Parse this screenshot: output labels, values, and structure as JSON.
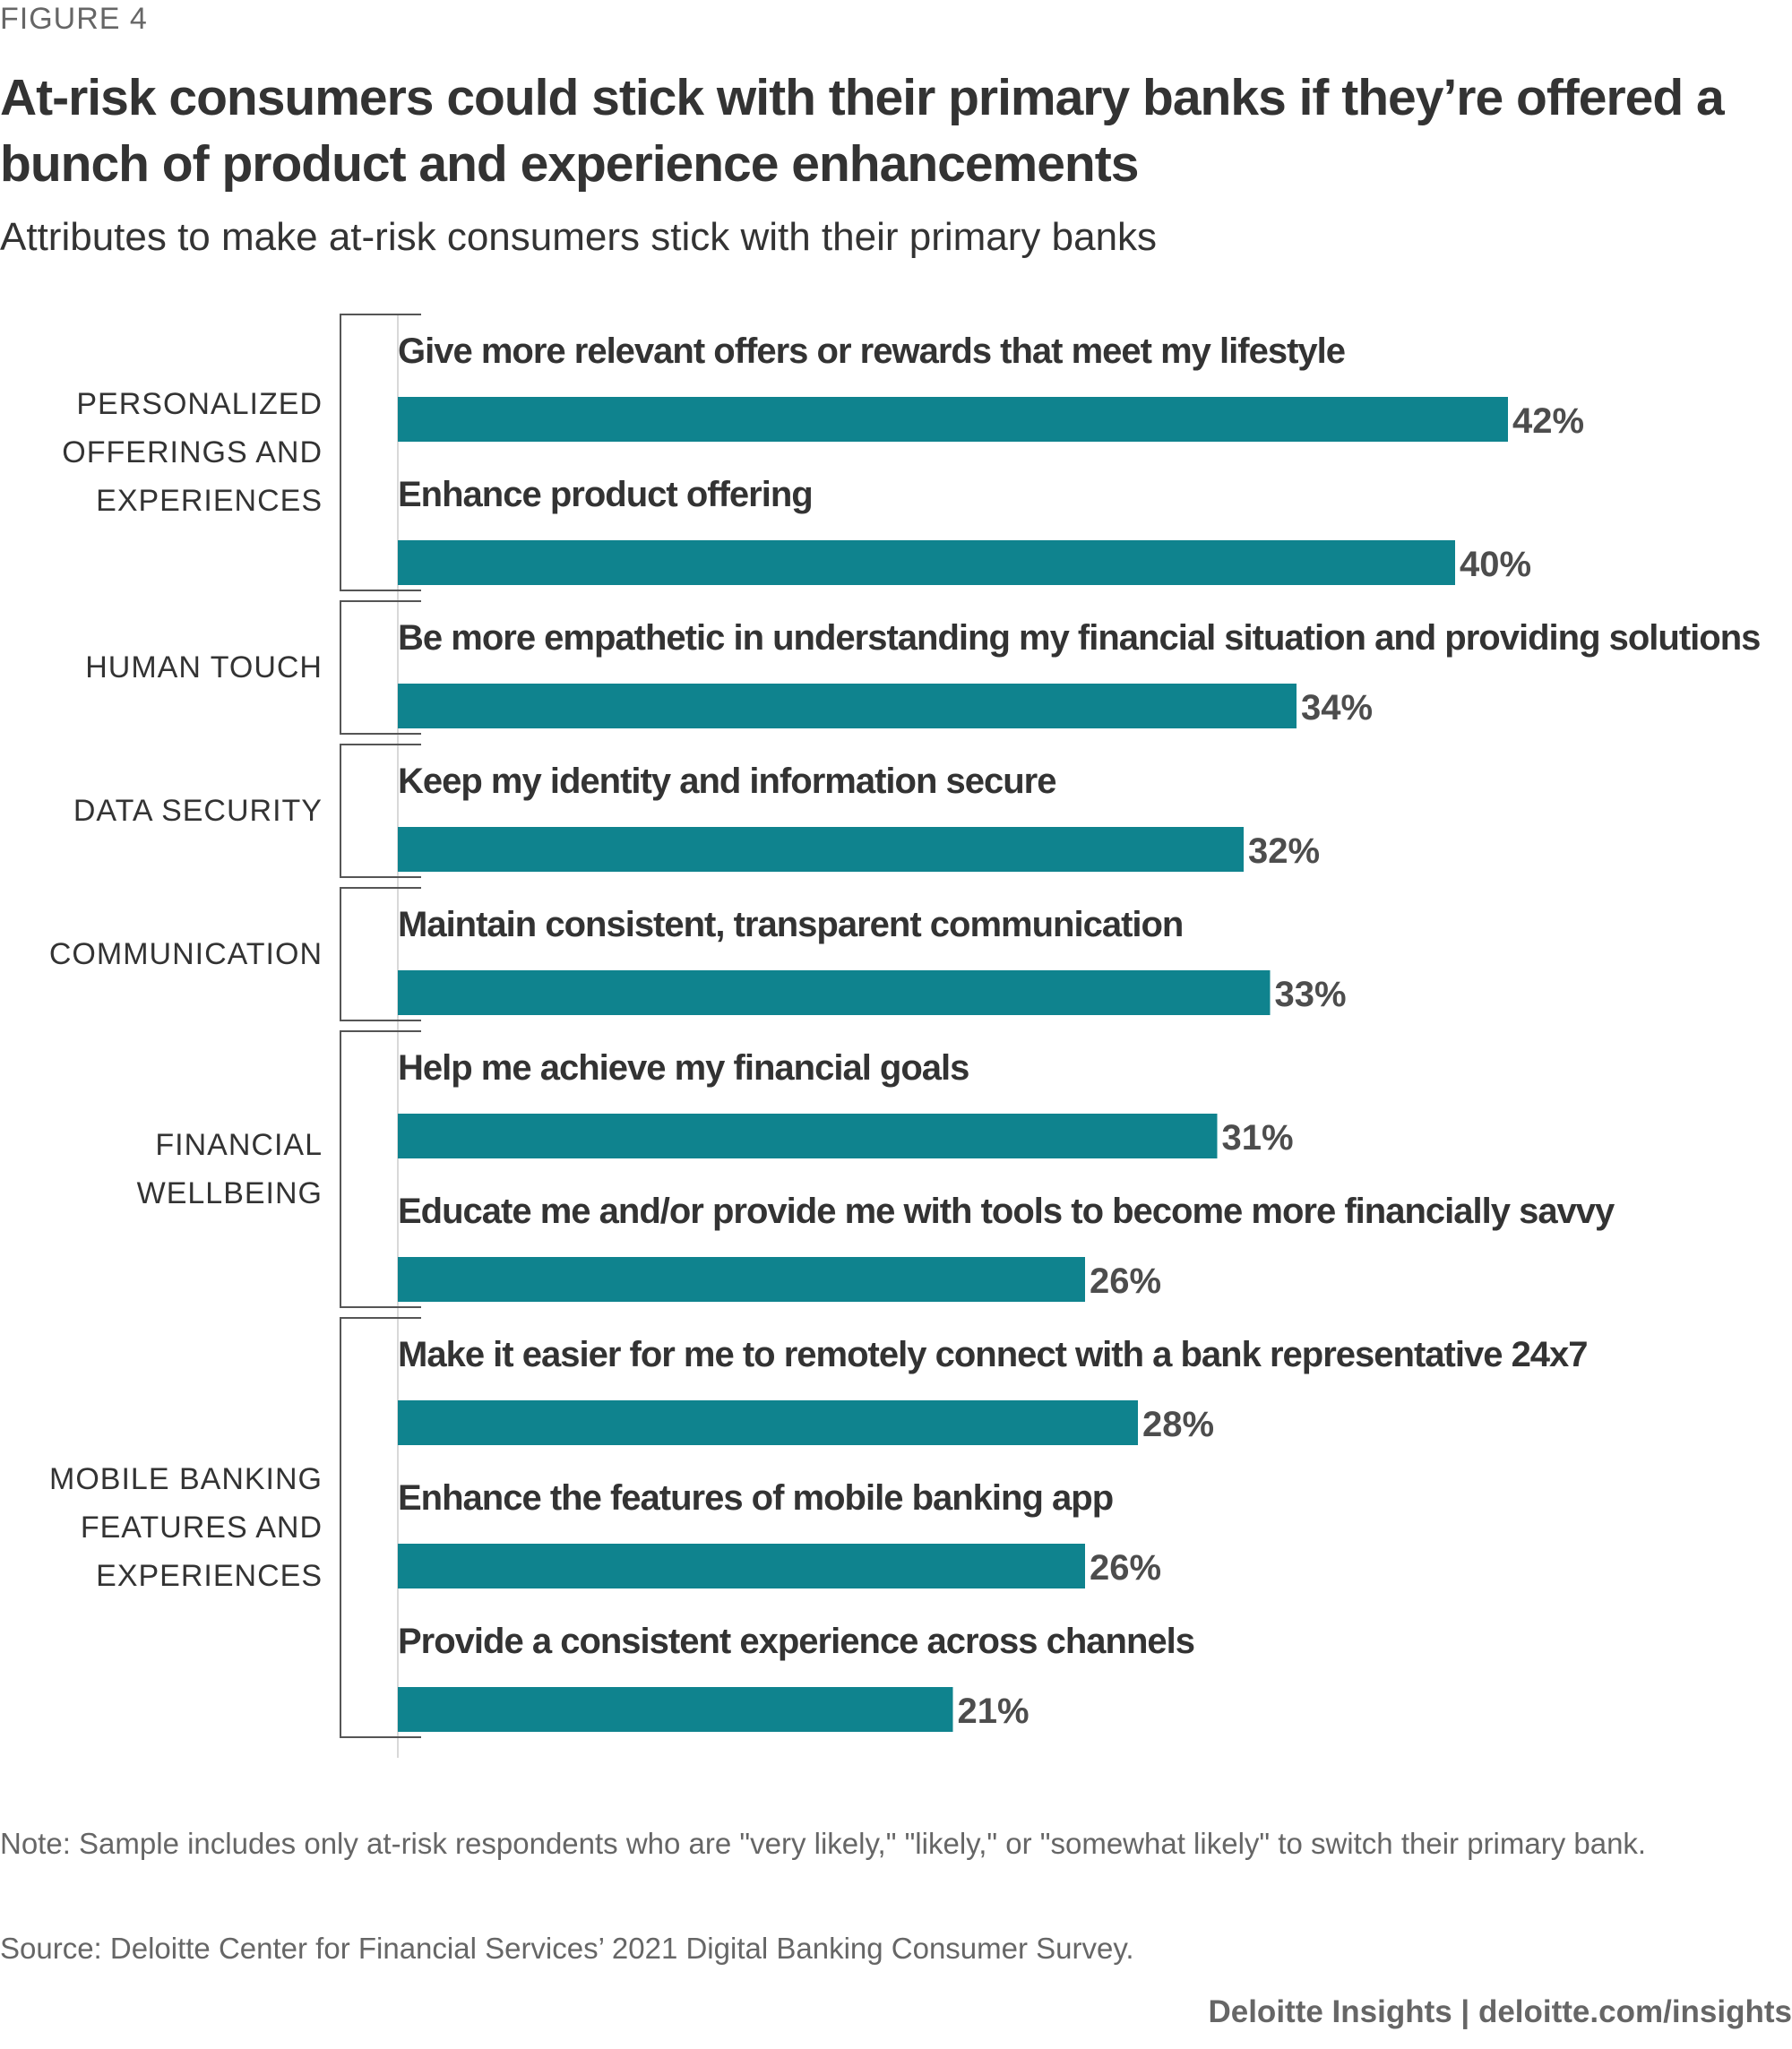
{
  "figure_label": "FIGURE 4",
  "chart_data": {
    "type": "bar",
    "orientation": "horizontal",
    "title": "At-risk consumers could stick with their primary banks if they’re offered a bunch of product and experience enhancements",
    "subtitle": "Attributes to make at-risk consumers stick with their primary banks",
    "xlim": [
      0,
      50
    ],
    "grid": false,
    "value_suffix": "%",
    "bar_color": "#0f838e",
    "groups": [
      {
        "label": "PERSONALIZED\nOFFERINGS AND\nEXPERIENCES",
        "items": [
          0,
          1
        ]
      },
      {
        "label": "HUMAN TOUCH",
        "items": [
          2
        ]
      },
      {
        "label": "DATA SECURITY",
        "items": [
          3
        ]
      },
      {
        "label": "COMMUNICATION",
        "items": [
          4
        ]
      },
      {
        "label": "FINANCIAL\nWELLBEING",
        "items": [
          5,
          6
        ]
      },
      {
        "label": "MOBILE BANKING\nFEATURES AND\nEXPERIENCES",
        "items": [
          7,
          8,
          9
        ]
      }
    ],
    "categories": [
      "Give more relevant offers or rewards that meet my lifestyle",
      "Enhance product offering",
      "Be more empathetic in understanding my financial situation and providing solutions",
      "Keep my identity and information secure",
      "Maintain consistent, transparent communication",
      "Help me achieve my financial goals",
      "Educate me and/or provide me with tools to become more financially savvy",
      "Make it easier for me to remotely connect with a bank representative 24x7",
      "Enhance the features of mobile banking app",
      "Provide a consistent experience across channels"
    ],
    "values": [
      42,
      40,
      34,
      32,
      33,
      31,
      26,
      28,
      26,
      21
    ]
  },
  "note": "Note: Sample includes only at-risk respondents who are \"very likely,\" \"likely,\" or \"somewhat likely\" to switch their primary bank.",
  "source": "Source: Deloitte Center for Financial Services’ 2021 Digital Banking Consumer Survey.",
  "footer": "Deloitte Insights | deloitte.com/insights"
}
